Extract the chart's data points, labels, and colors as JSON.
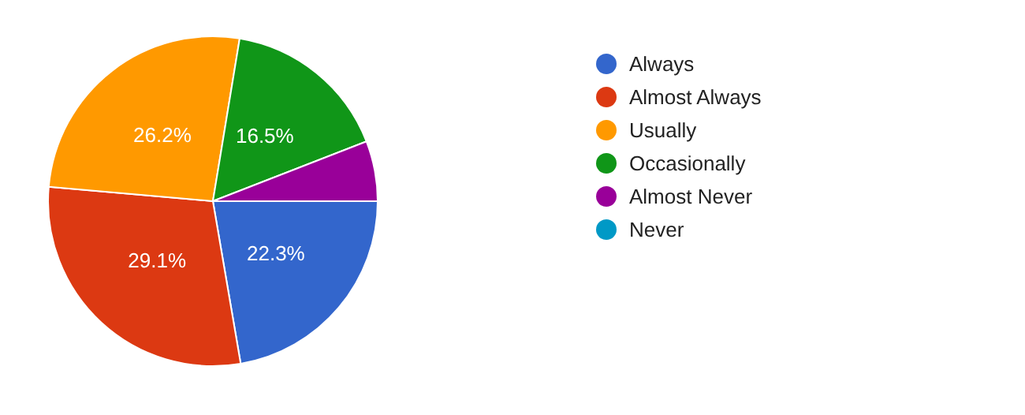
{
  "chart_data": {
    "type": "pie",
    "categories": [
      "Always",
      "Almost Always",
      "Usually",
      "Occasionally",
      "Almost Never",
      "Never"
    ],
    "values": [
      22.3,
      29.1,
      26.2,
      16.5,
      5.9,
      0
    ],
    "colors": [
      "#3366cc",
      "#dc3912",
      "#ff9900",
      "#109618",
      "#990099",
      "#0099c6"
    ],
    "value_labels": [
      "22.3%",
      "29.1%",
      "26.2%",
      "16.5%",
      null,
      null
    ],
    "legend": "right"
  }
}
